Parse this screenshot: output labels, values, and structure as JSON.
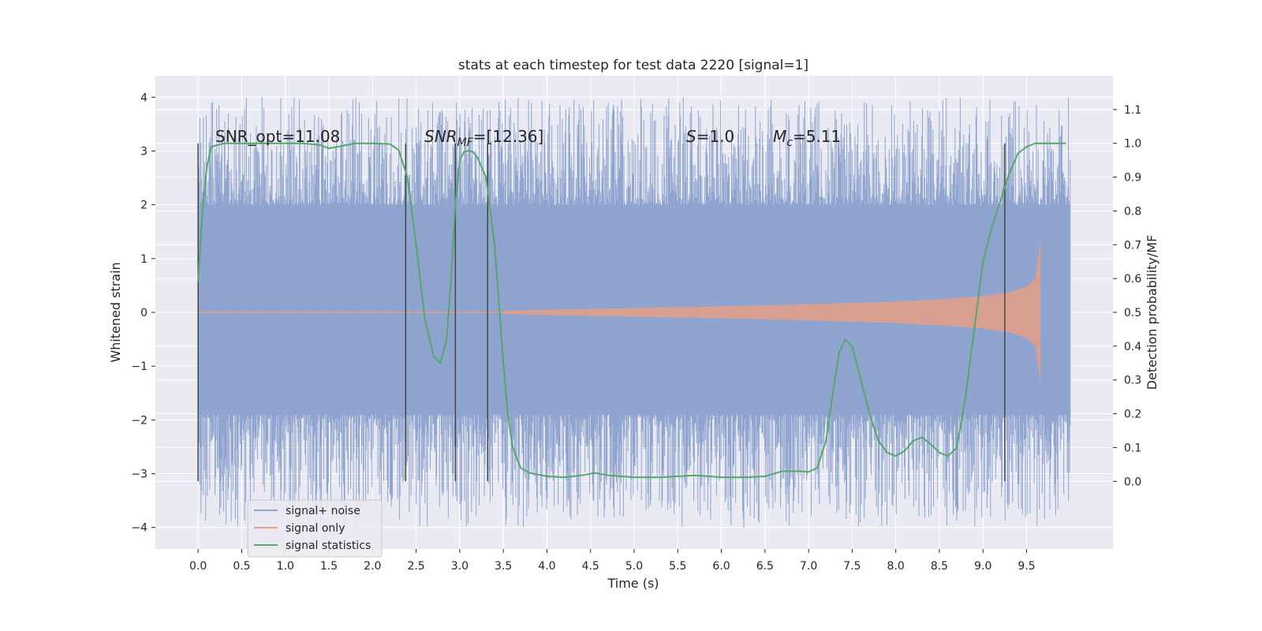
{
  "chart_data": {
    "type": "line",
    "title": "stats at each timestep for test data 2220 [signal=1]",
    "xlabel": "Time (s)",
    "ylabel_left": "Whitened strain",
    "ylabel_right": "Detection probability/MF",
    "xlim": [
      -0.49,
      10.49
    ],
    "ylim_left": [
      -4.4,
      4.4
    ],
    "ylim_right": [
      -0.2,
      1.2
    ],
    "x_ticks": [
      "0.0",
      "0.5",
      "1.0",
      "1.5",
      "2.0",
      "2.5",
      "3.0",
      "3.5",
      "4.0",
      "4.5",
      "5.0",
      "5.5",
      "6.0",
      "6.5",
      "7.0",
      "7.5",
      "8.0",
      "8.5",
      "9.0",
      "9.5"
    ],
    "y_left_ticks": [
      "−4",
      "−3",
      "−2",
      "−1",
      "0",
      "1",
      "2",
      "3",
      "4"
    ],
    "y_right_ticks": [
      "0.0",
      "0.1",
      "0.2",
      "0.3",
      "0.4",
      "0.5",
      "0.6",
      "0.7",
      "0.8",
      "0.9",
      "1.0",
      "1.1"
    ],
    "grid": true,
    "legend_position": "lower-left",
    "legend": [
      "signal+ noise",
      "signal only",
      "signal statistics"
    ],
    "annotations": {
      "snr_opt": "SNR_opt=11.08",
      "snr_mf_main": "SNR",
      "snr_mf_sub": "MF",
      "snr_mf_val": "=[12.36]",
      "s_main": "S",
      "s_val": "=1.0",
      "mc_main": "M",
      "mc_sub": "c",
      "mc_val": "=5.11"
    },
    "vertical_markers_x": [
      0.0,
      2.38,
      2.95,
      3.32,
      9.25
    ],
    "series": [
      {
        "name": "signal+ noise",
        "axis": "left",
        "color": "#8fa4cf",
        "x_range": [
          0.0,
          10.0
        ],
        "band": [
          -1.9,
          2.0
        ],
        "spike_max": 4.0,
        "spike_min": -4.0
      },
      {
        "name": "signal only",
        "axis": "left",
        "color": "#e0a08a",
        "envelope": {
          "x": [
            3.5,
            4.0,
            5.0,
            6.0,
            7.0,
            8.0,
            8.5,
            9.0,
            9.3,
            9.5,
            9.6,
            9.66
          ],
          "amp": [
            0.03,
            0.05,
            0.08,
            0.11,
            0.15,
            0.2,
            0.24,
            0.3,
            0.37,
            0.48,
            0.62,
            1.35
          ]
        }
      },
      {
        "name": "signal statistics",
        "axis": "right",
        "color": "#55a868",
        "x": [
          0.0,
          0.05,
          0.1,
          0.15,
          0.3,
          0.5,
          0.8,
          1.0,
          1.2,
          1.4,
          1.5,
          1.6,
          1.8,
          2.0,
          2.2,
          2.3,
          2.4,
          2.5,
          2.6,
          2.7,
          2.78,
          2.85,
          2.9,
          2.95,
          3.0,
          3.05,
          3.1,
          3.15,
          3.2,
          3.3,
          3.4,
          3.5,
          3.55,
          3.6,
          3.65,
          3.7,
          3.8,
          4.0,
          4.2,
          4.4,
          4.55,
          4.7,
          5.0,
          5.3,
          5.5,
          5.7,
          6.0,
          6.3,
          6.5,
          6.7,
          6.9,
          7.0,
          7.1,
          7.2,
          7.3,
          7.35,
          7.42,
          7.5,
          7.6,
          7.7,
          7.8,
          7.9,
          8.0,
          8.1,
          8.2,
          8.3,
          8.4,
          8.5,
          8.6,
          8.7,
          8.8,
          8.9,
          9.0,
          9.1,
          9.2,
          9.3,
          9.4,
          9.5,
          9.6,
          9.7,
          9.85,
          9.95
        ],
        "y": [
          0.59,
          0.8,
          0.93,
          0.99,
          1.0,
          1.0,
          1.0,
          1.0,
          1.0,
          0.995,
          0.985,
          0.99,
          1.0,
          1.0,
          0.998,
          0.98,
          0.9,
          0.7,
          0.48,
          0.37,
          0.35,
          0.42,
          0.6,
          0.82,
          0.95,
          0.975,
          0.978,
          0.975,
          0.96,
          0.9,
          0.7,
          0.35,
          0.2,
          0.11,
          0.07,
          0.04,
          0.025,
          0.015,
          0.012,
          0.018,
          0.025,
          0.018,
          0.012,
          0.012,
          0.015,
          0.018,
          0.012,
          0.012,
          0.015,
          0.03,
          0.03,
          0.028,
          0.04,
          0.12,
          0.3,
          0.38,
          0.42,
          0.4,
          0.3,
          0.2,
          0.12,
          0.085,
          0.075,
          0.09,
          0.12,
          0.13,
          0.11,
          0.085,
          0.075,
          0.1,
          0.25,
          0.45,
          0.65,
          0.75,
          0.83,
          0.91,
          0.97,
          0.99,
          1.0,
          1.0,
          1.0,
          1.0
        ]
      }
    ]
  }
}
